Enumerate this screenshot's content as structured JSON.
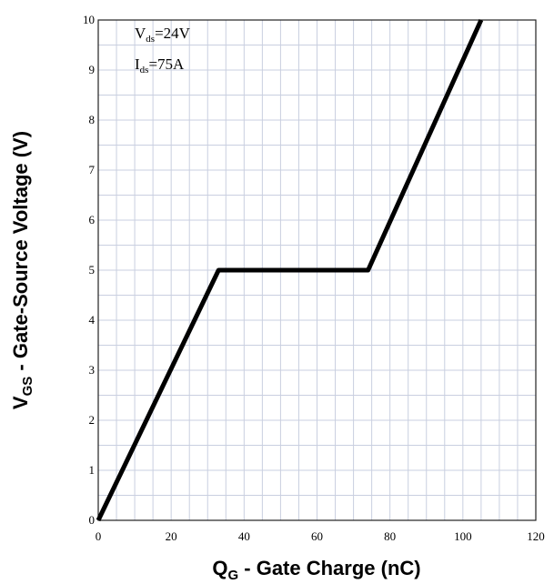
{
  "chart_data": {
    "type": "line",
    "xlabel": {
      "main": "Q",
      "sub": "G",
      "rest": " - Gate Charge (nC)"
    },
    "ylabel": {
      "main": "V",
      "sub": "GS",
      "rest": " - Gate-Source Voltage (V)"
    },
    "xlim": [
      0,
      120
    ],
    "ylim": [
      0,
      10
    ],
    "x_ticks": [
      "0",
      "20",
      "40",
      "60",
      "80",
      "100",
      "120"
    ],
    "y_ticks": [
      "0",
      "1",
      "2",
      "3",
      "4",
      "5",
      "6",
      "7",
      "8",
      "9",
      "10"
    ],
    "grid": true,
    "annotations": [
      {
        "main": "V",
        "sub": "ds",
        "rest": "=24V"
      },
      {
        "main": "I",
        "sub": "ds",
        "rest": "=75A"
      }
    ],
    "series": [
      {
        "color": "#000000",
        "x": [
          0,
          33,
          74,
          105
        ],
        "y": [
          0,
          5,
          5,
          10
        ]
      }
    ]
  }
}
